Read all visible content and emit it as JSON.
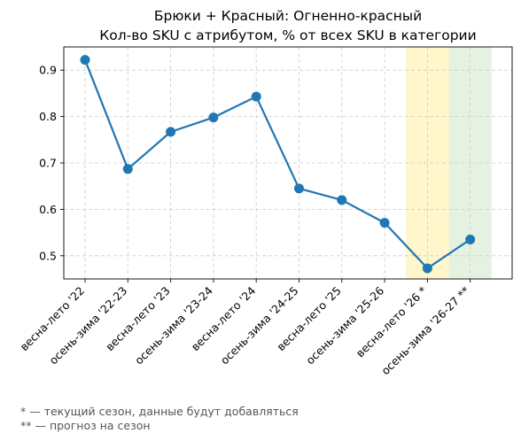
{
  "chart_data": {
    "type": "line",
    "title": "Брюки + Красный: Огненно-красный",
    "subtitle": "Кол-во SKU с атрибутом, % от всех SKU в категории",
    "categories": [
      "весна-лето '22",
      "осень-зима '22-23",
      "весна-лето '23",
      "осень-зима '23-24",
      "весна-лето '24",
      "осень-зима '24-25",
      "весна-лето '25",
      "осень-зима '25-26",
      "весна-лето '26 *",
      "осень-зима '26-27 **"
    ],
    "series": [
      {
        "values": [
          0.922,
          0.687,
          0.767,
          0.798,
          0.843,
          0.645,
          0.62,
          0.571,
          0.473,
          0.535
        ],
        "color": "#1f77b4"
      }
    ],
    "ylim": [
      0.45,
      0.95
    ],
    "yticks": [
      "0.5",
      "0.6",
      "0.7",
      "0.8",
      "0.9"
    ],
    "grid": true,
    "highlight_current_category": "весна-лето '26 *",
    "highlight_forecast_category": "осень-зима '26-27 **",
    "highlight_current_color": "#fff6cc",
    "highlight_forecast_color": "#e6f2e1"
  },
  "footnotes": {
    "current": "* — текущий сезон, данные будут добавляться",
    "forecast": "** — прогноз на сезон"
  }
}
